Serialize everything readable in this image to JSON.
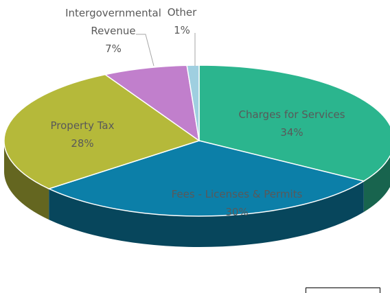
{
  "chart_data": {
    "type": "pie",
    "categories": [
      "Charges for Services",
      "Fees - Licenses & Permits",
      "Property Tax",
      "Intergovernmental Revenue",
      "Other"
    ],
    "values": [
      34,
      30,
      28,
      7,
      1
    ],
    "value_labels": [
      "34%",
      "30%",
      "28%",
      "7%",
      "1%"
    ],
    "colors": [
      "#2bb58e",
      "#0c7fa8",
      "#b5b93a",
      "#c17fcc",
      "#9fcfe0"
    ]
  }
}
